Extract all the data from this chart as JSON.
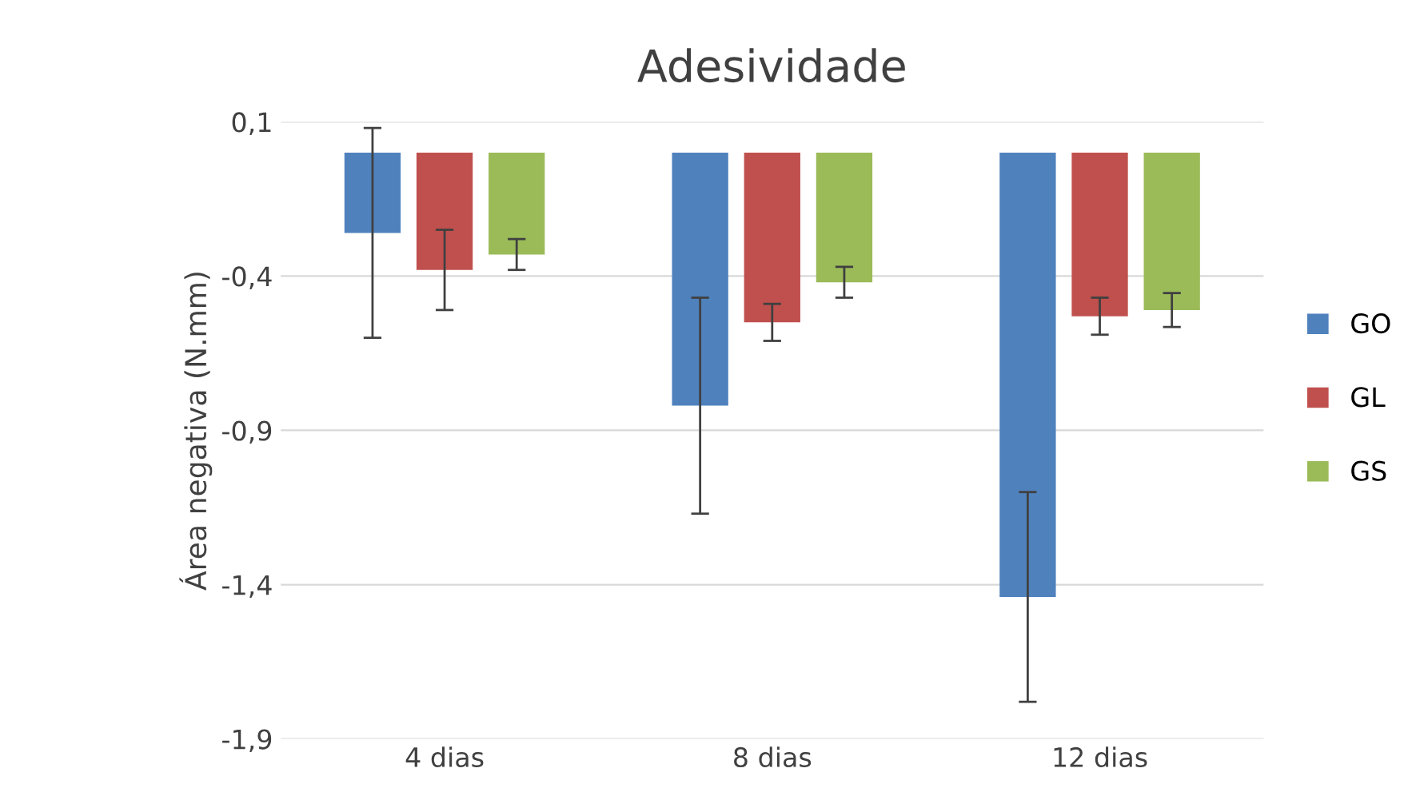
{
  "chart_data": {
    "type": "bar",
    "title": "Adesividade",
    "ylabel": "Área negativa (N.mm)",
    "categories": [
      "4 dias",
      "8 dias",
      "12 dias"
    ],
    "series": [
      {
        "name": "GO",
        "color": "#4f81bd",
        "values": [
          -0.26,
          -0.82,
          -1.44
        ],
        "errors": [
          0.34,
          0.35,
          0.34
        ]
      },
      {
        "name": "GL",
        "color": "#c0504d",
        "values": [
          -0.38,
          -0.55,
          -0.53
        ],
        "errors": [
          0.13,
          0.06,
          0.06
        ]
      },
      {
        "name": "GS",
        "color": "#9bbb59",
        "values": [
          -0.33,
          -0.42,
          -0.51
        ],
        "errors": [
          0.05,
          0.05,
          0.055
        ]
      }
    ],
    "ylim": [
      -1.9,
      0.1
    ],
    "yticks": [
      {
        "value": 0.1,
        "label": "0,1"
      },
      {
        "value": -0.4,
        "label": "-0,4"
      },
      {
        "value": -0.9,
        "label": "-0,9"
      },
      {
        "value": -1.4,
        "label": "-1,4"
      },
      {
        "value": -1.9,
        "label": "-1,9"
      }
    ],
    "grid": "y",
    "legend": "right"
  }
}
